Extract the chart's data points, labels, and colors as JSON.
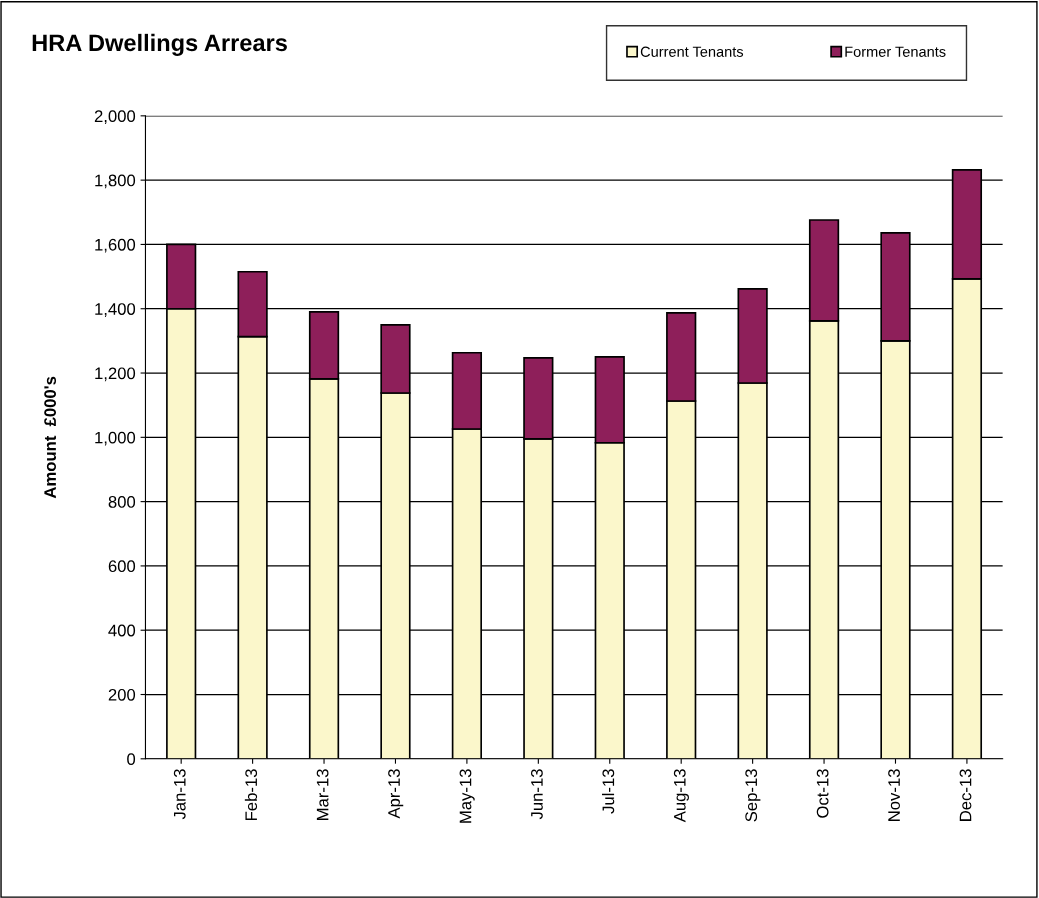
{
  "chart_data": {
    "type": "bar",
    "title": "HRA Dwellings Arrears",
    "ylabel": "Amount  £000's",
    "categories": [
      "Jan-13",
      "Feb-13",
      "Mar-13",
      "Apr-13",
      "May-13",
      "Jun-13",
      "Jul-13",
      "Aug-13",
      "Sep-13",
      "Oct-13",
      "Nov-13",
      "Dec-13"
    ],
    "series": [
      {
        "name": "Current Tenants",
        "color": "#fbf7cb",
        "values": [
          1400,
          1313,
          1182,
          1138,
          1026,
          995,
          983,
          1113,
          1169,
          1362,
          1300,
          1493
        ]
      },
      {
        "name": "Former Tenants",
        "color": "#8e1f5a",
        "values": [
          200,
          202,
          208,
          212,
          237,
          252,
          267,
          274,
          293,
          314,
          336,
          339
        ]
      }
    ],
    "stacked": true,
    "ylim": [
      0,
      2000
    ],
    "yticks": [
      0,
      200,
      400,
      600,
      800,
      {
        "value": 1000,
        "label": "1,000"
      },
      {
        "value": 1200,
        "label": "1,200"
      },
      {
        "value": 1400,
        "label": "1,400"
      },
      {
        "value": 1600,
        "label": "1,600"
      },
      {
        "value": 1800,
        "label": "1,800"
      },
      {
        "value": 2000,
        "label": "2,000"
      }
    ],
    "grid": "y",
    "legend": "top right"
  }
}
